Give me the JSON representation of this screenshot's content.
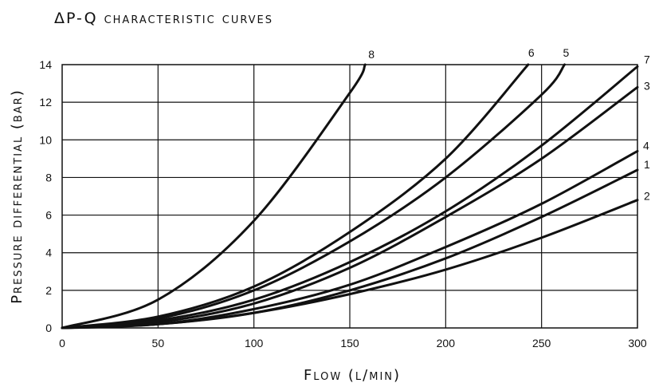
{
  "chart_data": {
    "type": "line",
    "title": "ΔP-Q characteristic curves",
    "xlabel": "Flow (l/min)",
    "ylabel": "Pressure differential (bar)",
    "xlim": [
      0,
      300
    ],
    "ylim": [
      0,
      14
    ],
    "xticks": [
      "0",
      "50",
      "100",
      "150",
      "200",
      "250",
      "300"
    ],
    "yticks": [
      "0",
      "2",
      "4",
      "6",
      "8",
      "10",
      "12",
      "14"
    ],
    "grid": true,
    "series": [
      {
        "name": "1",
        "x": [
          0,
          50,
          100,
          150,
          200,
          250,
          300
        ],
        "y": [
          0,
          0.2,
          0.8,
          2.0,
          3.7,
          5.9,
          8.4
        ]
      },
      {
        "name": "2",
        "x": [
          0,
          50,
          100,
          150,
          200,
          250,
          300
        ],
        "y": [
          0,
          0.2,
          0.8,
          1.8,
          3.1,
          4.8,
          6.8
        ]
      },
      {
        "name": "3",
        "x": [
          0,
          50,
          100,
          150,
          200,
          250,
          300
        ],
        "y": [
          0,
          0.3,
          1.3,
          3.2,
          5.9,
          9.0,
          12.8
        ]
      },
      {
        "name": "4",
        "x": [
          0,
          50,
          100,
          150,
          200,
          250,
          300
        ],
        "y": [
          0,
          0.2,
          1.0,
          2.3,
          4.3,
          6.6,
          9.4
        ]
      },
      {
        "name": "5",
        "x": [
          0,
          50,
          100,
          150,
          200,
          250,
          262
        ],
        "y": [
          0,
          0.5,
          2.0,
          4.6,
          8.0,
          12.4,
          14.0
        ]
      },
      {
        "name": "6",
        "x": [
          0,
          50,
          100,
          150,
          200,
          243
        ],
        "y": [
          0,
          0.6,
          2.2,
          5.1,
          9.0,
          14.0
        ]
      },
      {
        "name": "7",
        "x": [
          0,
          50,
          100,
          150,
          200,
          250,
          300
        ],
        "y": [
          0,
          0.4,
          1.5,
          3.5,
          6.2,
          9.7,
          13.9
        ]
      },
      {
        "name": "8",
        "x": [
          0,
          50,
          100,
          150,
          158
        ],
        "y": [
          0,
          1.5,
          5.7,
          12.5,
          14.0
        ]
      }
    ]
  }
}
